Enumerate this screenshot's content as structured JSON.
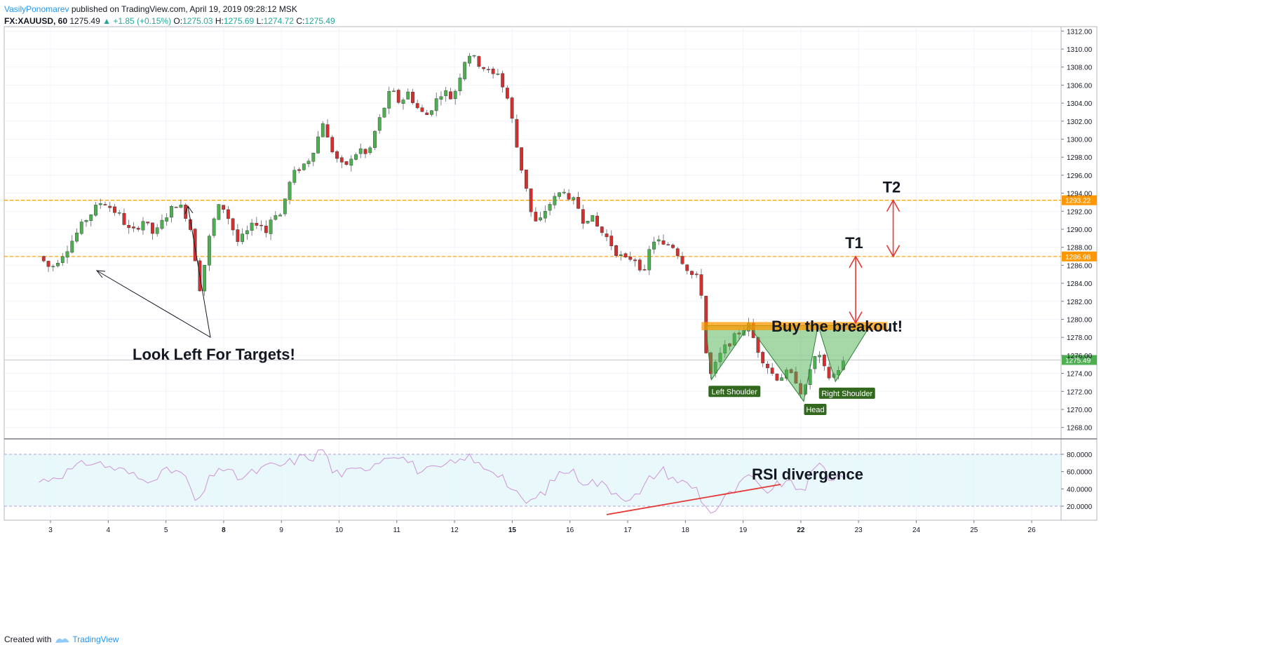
{
  "header": {
    "author": "VasilyPonomarev",
    "published": "published on TradingView.com, April 19, 2019 09:28:12 MSK",
    "symbol": "FX:XAUUSD, 60",
    "last": "1275.49",
    "change": "+1.85 (+0.15%)",
    "o_label": "O:",
    "o": "1275.03",
    "h_label": "H:",
    "h": "1275.69",
    "l_label": "L:",
    "l": "1274.72",
    "c_label": "C:",
    "c": "1275.49"
  },
  "footer": {
    "created": "Created with",
    "brand": "TradingView"
  },
  "colors": {
    "up": "#26a69a",
    "down": "#ef5350",
    "candle_up": "#4caf50",
    "candle_down": "#d32f2f",
    "level": "#ff9800",
    "pattern": "#4caf50",
    "arrow": "#e53935",
    "rsi": "#ce93d8",
    "rsi_band": "#e0f7fa"
  },
  "chart_data": [
    {
      "type": "candlestick",
      "title": "FX:XAUUSD, 60",
      "x_tick_labels": [
        "3",
        "4",
        "5",
        "8",
        "9",
        "10",
        "11",
        "12",
        "15",
        "16",
        "17",
        "18",
        "19",
        "22",
        "23",
        "24",
        "25",
        "26"
      ],
      "y_tick_labels": [
        "1312.00",
        "1310.00",
        "1308.00",
        "1306.00",
        "1304.00",
        "1302.00",
        "1300.00",
        "1298.00",
        "1296.00",
        "1294.00",
        "1292.00",
        "1290.00",
        "1288.00",
        "1286.00",
        "1284.00",
        "1282.00",
        "1280.00",
        "1278.00",
        "1276.00",
        "1274.00",
        "1272.00",
        "1270.00",
        "1268.00"
      ],
      "ylim": [
        1266.6,
        1312.4
      ],
      "grid": true,
      "price_path": [
        [
          -0.2,
          1287.0
        ],
        [
          0.0,
          1285.6
        ],
        [
          0.3,
          1288.0
        ],
        [
          0.6,
          1291.0
        ],
        [
          0.9,
          1293.2
        ],
        [
          1.2,
          1291.5
        ],
        [
          1.4,
          1289.5
        ],
        [
          1.6,
          1291.0
        ],
        [
          1.8,
          1289.3
        ],
        [
          2.0,
          1291.5
        ],
        [
          2.2,
          1293.0
        ],
        [
          2.4,
          1291.0
        ],
        [
          2.5,
          1287.0
        ],
        [
          2.6,
          1283.0
        ],
        [
          2.7,
          1287.5
        ],
        [
          2.8,
          1290.5
        ],
        [
          2.95,
          1293.0
        ],
        [
          3.1,
          1291.0
        ],
        [
          3.25,
          1288.5
        ],
        [
          3.45,
          1290.0
        ],
        [
          3.6,
          1291.0
        ],
        [
          3.75,
          1289.5
        ],
        [
          3.85,
          1292.0
        ],
        [
          4.0,
          1291.5
        ],
        [
          4.1,
          1294.5
        ],
        [
          4.25,
          1296.5
        ],
        [
          4.45,
          1297.5
        ],
        [
          4.6,
          1299.5
        ],
        [
          4.7,
          1301.5
        ],
        [
          4.75,
          1302.8
        ],
        [
          4.8,
          1300.0
        ],
        [
          4.9,
          1298.5
        ],
        [
          5.05,
          1297.0
        ],
        [
          5.2,
          1297.5
        ],
        [
          5.35,
          1299.0
        ],
        [
          5.5,
          1298.0
        ],
        [
          5.6,
          1300.5
        ],
        [
          5.75,
          1303.0
        ],
        [
          5.9,
          1305.5
        ],
        [
          6.05,
          1304.0
        ],
        [
          6.2,
          1305.2
        ],
        [
          6.35,
          1303.5
        ],
        [
          6.5,
          1302.5
        ],
        [
          6.65,
          1304.0
        ],
        [
          6.8,
          1305.5
        ],
        [
          6.95,
          1304.5
        ],
        [
          7.05,
          1306.0
        ],
        [
          7.15,
          1308.5
        ],
        [
          7.25,
          1309.5
        ],
        [
          7.4,
          1308.5
        ],
        [
          7.5,
          1308.0
        ],
        [
          7.65,
          1307.0
        ],
        [
          7.75,
          1307.5
        ],
        [
          7.85,
          1305.5
        ],
        [
          7.95,
          1304.0
        ],
        [
          8.05,
          1300.0
        ],
        [
          8.15,
          1297.0
        ],
        [
          8.25,
          1294.5
        ],
        [
          8.35,
          1291.0
        ],
        [
          8.45,
          1290.5
        ],
        [
          8.6,
          1292.5
        ],
        [
          8.75,
          1293.5
        ],
        [
          8.9,
          1294.5
        ],
        [
          9.0,
          1292.5
        ],
        [
          9.1,
          1293.5
        ],
        [
          9.2,
          1291.0
        ],
        [
          9.35,
          1291.5
        ],
        [
          9.5,
          1290.0
        ],
        [
          9.65,
          1289.0
        ],
        [
          9.8,
          1287.5
        ],
        [
          9.95,
          1286.5
        ],
        [
          10.1,
          1287.0
        ],
        [
          10.2,
          1286.0
        ],
        [
          10.3,
          1285.0
        ],
        [
          10.4,
          1288.5
        ],
        [
          10.5,
          1289.0
        ],
        [
          10.6,
          1288.0
        ],
        [
          10.75,
          1288.5
        ],
        [
          10.9,
          1287.0
        ],
        [
          11.0,
          1286.0
        ],
        [
          11.1,
          1285.0
        ],
        [
          11.2,
          1284.5
        ],
        [
          11.25,
          1285.0
        ],
        [
          11.3,
          1281.0
        ],
        [
          11.35,
          1276.5
        ],
        [
          11.45,
          1273.5
        ],
        [
          11.55,
          1275.5
        ],
        [
          11.7,
          1277.0
        ],
        [
          11.85,
          1278.0
        ],
        [
          12.0,
          1279.0
        ],
        [
          12.1,
          1279.3
        ],
        [
          12.2,
          1277.5
        ],
        [
          12.3,
          1276.0
        ],
        [
          12.4,
          1275.0
        ],
        [
          12.5,
          1274.0
        ],
        [
          12.6,
          1273.5
        ],
        [
          12.75,
          1274.0
        ],
        [
          12.9,
          1273.5
        ],
        [
          13.0,
          1272.0
        ],
        [
          13.05,
          1271.5
        ],
        [
          13.1,
          1273.0
        ],
        [
          13.2,
          1275.5
        ],
        [
          13.3,
          1276.0
        ],
        [
          13.4,
          1274.5
        ],
        [
          13.5,
          1273.5
        ],
        [
          13.6,
          1274.0
        ],
        [
          13.7,
          1275.0
        ],
        [
          13.8,
          1275.49
        ]
      ],
      "levels": [
        {
          "price": 1293.22,
          "label": "1293.22"
        },
        {
          "price": 1286.98,
          "label": "1286.98"
        },
        {
          "price": 1275.49,
          "label": "1275.49"
        }
      ],
      "annotations": [
        "T2",
        "T1",
        "Buy the breakout!",
        "Look Left For Targets!",
        "Left Shoulder",
        "Head",
        "Right Shoulder"
      ]
    },
    {
      "type": "line",
      "title": "RSI",
      "y_tick_labels": [
        "80.0000",
        "60.0000",
        "40.0000",
        "20.0000"
      ],
      "ylim": [
        2,
        97
      ],
      "band": [
        20,
        80
      ],
      "values_path": [
        [
          -0.2,
          48
        ],
        [
          0.3,
          60
        ],
        [
          0.7,
          72
        ],
        [
          1.0,
          66
        ],
        [
          1.3,
          60
        ],
        [
          1.6,
          50
        ],
        [
          1.9,
          58
        ],
        [
          2.2,
          62
        ],
        [
          2.4,
          46
        ],
        [
          2.55,
          18
        ],
        [
          2.7,
          45
        ],
        [
          2.9,
          66
        ],
        [
          3.1,
          58
        ],
        [
          3.3,
          52
        ],
        [
          3.55,
          60
        ],
        [
          3.8,
          66
        ],
        [
          4.05,
          68
        ],
        [
          4.3,
          75
        ],
        [
          4.6,
          78
        ],
        [
          4.75,
          90
        ],
        [
          4.85,
          60
        ],
        [
          5.1,
          58
        ],
        [
          5.4,
          62
        ],
        [
          5.7,
          74
        ],
        [
          5.95,
          82
        ],
        [
          6.2,
          72
        ],
        [
          6.4,
          60
        ],
        [
          6.7,
          62
        ],
        [
          6.9,
          68
        ],
        [
          7.1,
          72
        ],
        [
          7.2,
          80
        ],
        [
          7.35,
          70
        ],
        [
          7.55,
          65
        ],
        [
          7.8,
          58
        ],
        [
          8.0,
          38
        ],
        [
          8.2,
          24
        ],
        [
          8.4,
          28
        ],
        [
          8.6,
          40
        ],
        [
          8.8,
          58
        ],
        [
          9.0,
          62
        ],
        [
          9.2,
          50
        ],
        [
          9.4,
          48
        ],
        [
          9.6,
          44
        ],
        [
          9.8,
          36
        ],
        [
          10.0,
          30
        ],
        [
          10.2,
          32
        ],
        [
          10.4,
          54
        ],
        [
          10.6,
          62
        ],
        [
          10.8,
          52
        ],
        [
          11.0,
          46
        ],
        [
          11.2,
          40
        ],
        [
          11.35,
          18
        ],
        [
          11.5,
          14
        ],
        [
          11.7,
          30
        ],
        [
          11.9,
          40
        ],
        [
          12.1,
          56
        ],
        [
          12.3,
          38
        ],
        [
          12.5,
          40
        ],
        [
          12.7,
          48
        ],
        [
          12.9,
          42
        ],
        [
          13.05,
          40
        ],
        [
          13.2,
          58
        ],
        [
          13.35,
          70
        ],
        [
          13.5,
          52
        ],
        [
          13.65,
          56
        ],
        [
          13.8,
          58
        ]
      ],
      "annotation": "RSI divergence"
    }
  ]
}
